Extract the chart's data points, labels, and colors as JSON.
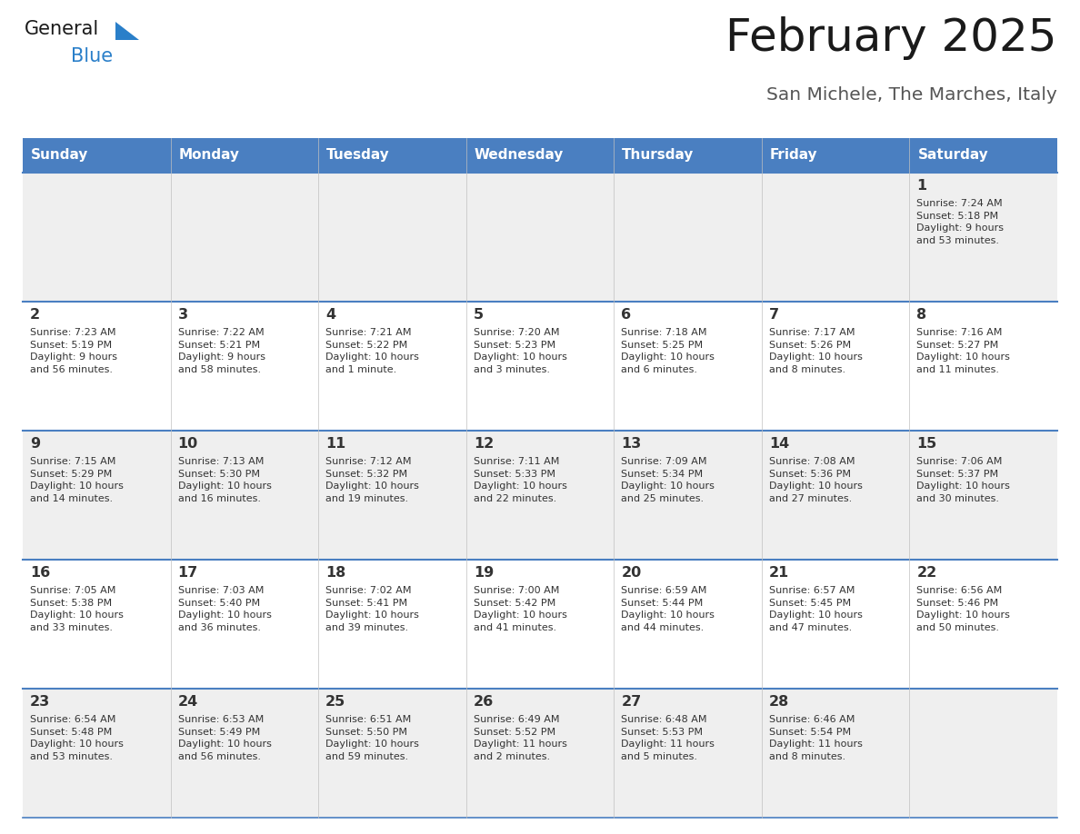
{
  "title": "February 2025",
  "subtitle": "San Michele, The Marches, Italy",
  "header_bg": "#4a7fc1",
  "header_text_color": "#FFFFFF",
  "days_of_week": [
    "Sunday",
    "Monday",
    "Tuesday",
    "Wednesday",
    "Thursday",
    "Friday",
    "Saturday"
  ],
  "row_bg_odd": "#EFEFEF",
  "row_bg_even": "#FFFFFF",
  "cell_text_color": "#333333",
  "border_color": "#4a7fc1",
  "calendar": [
    [
      {
        "day": "",
        "sunrise": "",
        "sunset": "",
        "daylight": ""
      },
      {
        "day": "",
        "sunrise": "",
        "sunset": "",
        "daylight": ""
      },
      {
        "day": "",
        "sunrise": "",
        "sunset": "",
        "daylight": ""
      },
      {
        "day": "",
        "sunrise": "",
        "sunset": "",
        "daylight": ""
      },
      {
        "day": "",
        "sunrise": "",
        "sunset": "",
        "daylight": ""
      },
      {
        "day": "",
        "sunrise": "",
        "sunset": "",
        "daylight": ""
      },
      {
        "day": "1",
        "sunrise": "Sunrise: 7:24 AM",
        "sunset": "Sunset: 5:18 PM",
        "daylight": "Daylight: 9 hours\nand 53 minutes."
      }
    ],
    [
      {
        "day": "2",
        "sunrise": "Sunrise: 7:23 AM",
        "sunset": "Sunset: 5:19 PM",
        "daylight": "Daylight: 9 hours\nand 56 minutes."
      },
      {
        "day": "3",
        "sunrise": "Sunrise: 7:22 AM",
        "sunset": "Sunset: 5:21 PM",
        "daylight": "Daylight: 9 hours\nand 58 minutes."
      },
      {
        "day": "4",
        "sunrise": "Sunrise: 7:21 AM",
        "sunset": "Sunset: 5:22 PM",
        "daylight": "Daylight: 10 hours\nand 1 minute."
      },
      {
        "day": "5",
        "sunrise": "Sunrise: 7:20 AM",
        "sunset": "Sunset: 5:23 PM",
        "daylight": "Daylight: 10 hours\nand 3 minutes."
      },
      {
        "day": "6",
        "sunrise": "Sunrise: 7:18 AM",
        "sunset": "Sunset: 5:25 PM",
        "daylight": "Daylight: 10 hours\nand 6 minutes."
      },
      {
        "day": "7",
        "sunrise": "Sunrise: 7:17 AM",
        "sunset": "Sunset: 5:26 PM",
        "daylight": "Daylight: 10 hours\nand 8 minutes."
      },
      {
        "day": "8",
        "sunrise": "Sunrise: 7:16 AM",
        "sunset": "Sunset: 5:27 PM",
        "daylight": "Daylight: 10 hours\nand 11 minutes."
      }
    ],
    [
      {
        "day": "9",
        "sunrise": "Sunrise: 7:15 AM",
        "sunset": "Sunset: 5:29 PM",
        "daylight": "Daylight: 10 hours\nand 14 minutes."
      },
      {
        "day": "10",
        "sunrise": "Sunrise: 7:13 AM",
        "sunset": "Sunset: 5:30 PM",
        "daylight": "Daylight: 10 hours\nand 16 minutes."
      },
      {
        "day": "11",
        "sunrise": "Sunrise: 7:12 AM",
        "sunset": "Sunset: 5:32 PM",
        "daylight": "Daylight: 10 hours\nand 19 minutes."
      },
      {
        "day": "12",
        "sunrise": "Sunrise: 7:11 AM",
        "sunset": "Sunset: 5:33 PM",
        "daylight": "Daylight: 10 hours\nand 22 minutes."
      },
      {
        "day": "13",
        "sunrise": "Sunrise: 7:09 AM",
        "sunset": "Sunset: 5:34 PM",
        "daylight": "Daylight: 10 hours\nand 25 minutes."
      },
      {
        "day": "14",
        "sunrise": "Sunrise: 7:08 AM",
        "sunset": "Sunset: 5:36 PM",
        "daylight": "Daylight: 10 hours\nand 27 minutes."
      },
      {
        "day": "15",
        "sunrise": "Sunrise: 7:06 AM",
        "sunset": "Sunset: 5:37 PM",
        "daylight": "Daylight: 10 hours\nand 30 minutes."
      }
    ],
    [
      {
        "day": "16",
        "sunrise": "Sunrise: 7:05 AM",
        "sunset": "Sunset: 5:38 PM",
        "daylight": "Daylight: 10 hours\nand 33 minutes."
      },
      {
        "day": "17",
        "sunrise": "Sunrise: 7:03 AM",
        "sunset": "Sunset: 5:40 PM",
        "daylight": "Daylight: 10 hours\nand 36 minutes."
      },
      {
        "day": "18",
        "sunrise": "Sunrise: 7:02 AM",
        "sunset": "Sunset: 5:41 PM",
        "daylight": "Daylight: 10 hours\nand 39 minutes."
      },
      {
        "day": "19",
        "sunrise": "Sunrise: 7:00 AM",
        "sunset": "Sunset: 5:42 PM",
        "daylight": "Daylight: 10 hours\nand 41 minutes."
      },
      {
        "day": "20",
        "sunrise": "Sunrise: 6:59 AM",
        "sunset": "Sunset: 5:44 PM",
        "daylight": "Daylight: 10 hours\nand 44 minutes."
      },
      {
        "day": "21",
        "sunrise": "Sunrise: 6:57 AM",
        "sunset": "Sunset: 5:45 PM",
        "daylight": "Daylight: 10 hours\nand 47 minutes."
      },
      {
        "day": "22",
        "sunrise": "Sunrise: 6:56 AM",
        "sunset": "Sunset: 5:46 PM",
        "daylight": "Daylight: 10 hours\nand 50 minutes."
      }
    ],
    [
      {
        "day": "23",
        "sunrise": "Sunrise: 6:54 AM",
        "sunset": "Sunset: 5:48 PM",
        "daylight": "Daylight: 10 hours\nand 53 minutes."
      },
      {
        "day": "24",
        "sunrise": "Sunrise: 6:53 AM",
        "sunset": "Sunset: 5:49 PM",
        "daylight": "Daylight: 10 hours\nand 56 minutes."
      },
      {
        "day": "25",
        "sunrise": "Sunrise: 6:51 AM",
        "sunset": "Sunset: 5:50 PM",
        "daylight": "Daylight: 10 hours\nand 59 minutes."
      },
      {
        "day": "26",
        "sunrise": "Sunrise: 6:49 AM",
        "sunset": "Sunset: 5:52 PM",
        "daylight": "Daylight: 11 hours\nand 2 minutes."
      },
      {
        "day": "27",
        "sunrise": "Sunrise: 6:48 AM",
        "sunset": "Sunset: 5:53 PM",
        "daylight": "Daylight: 11 hours\nand 5 minutes."
      },
      {
        "day": "28",
        "sunrise": "Sunrise: 6:46 AM",
        "sunset": "Sunset: 5:54 PM",
        "daylight": "Daylight: 11 hours\nand 8 minutes."
      },
      {
        "day": "",
        "sunrise": "",
        "sunset": "",
        "daylight": ""
      }
    ]
  ],
  "logo_general_color": "#1a1a1a",
  "logo_blue_color": "#2a7fc9",
  "logo_triangle_color": "#2a7fc9",
  "fig_width": 11.88,
  "fig_height": 9.18,
  "dpi": 100
}
